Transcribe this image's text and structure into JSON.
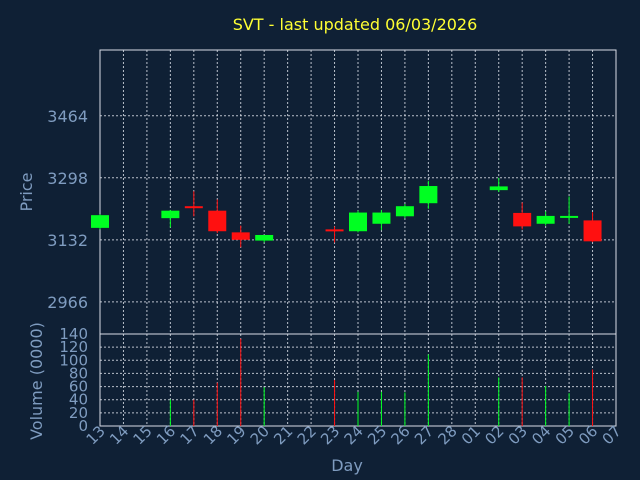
{
  "chart_data": {
    "type": "candlestick",
    "title": "SVT - last updated 06/03/2026",
    "xlabel": "Day",
    "price_ylabel": "Price",
    "volume_ylabel": "Volume (0000)",
    "price_ticks": [
      2966,
      3132,
      3298,
      3464
    ],
    "price_ylim": [
      2880,
      3640
    ],
    "volume_ticks": [
      0,
      20,
      40,
      60,
      80,
      100,
      120,
      140
    ],
    "volume_ylim": [
      0,
      140
    ],
    "x_labels": [
      "13",
      "14",
      "15",
      "16",
      "17",
      "18",
      "19",
      "20",
      "21",
      "22",
      "23",
      "24",
      "25",
      "26",
      "27",
      "28",
      "01",
      "02",
      "03",
      "04",
      "05",
      "06",
      "07"
    ],
    "up_color": "#00ff22",
    "down_color": "#ff1010",
    "candles": [
      {
        "x": 0,
        "open": 3164,
        "high": 3200,
        "low": 3160,
        "close": 3198,
        "volume": 0
      },
      {
        "x": 3,
        "open": 3190,
        "high": 3212,
        "low": 3165,
        "close": 3210,
        "volume": 40
      },
      {
        "x": 4,
        "open": 3222,
        "high": 3262,
        "low": 3195,
        "close": 3220,
        "volume": 40
      },
      {
        "x": 5,
        "open": 3210,
        "high": 3240,
        "low": 3150,
        "close": 3155,
        "volume": 66
      },
      {
        "x": 6,
        "open": 3152,
        "high": 3170,
        "low": 3112,
        "close": 3132,
        "volume": 133
      },
      {
        "x": 7,
        "open": 3130,
        "high": 3145,
        "low": 3125,
        "close": 3145,
        "volume": 59
      },
      {
        "x": 10,
        "open": 3160,
        "high": 3168,
        "low": 3125,
        "close": 3155,
        "volume": 70
      },
      {
        "x": 11,
        "open": 3155,
        "high": 3210,
        "low": 3152,
        "close": 3205,
        "volume": 52
      },
      {
        "x": 12,
        "open": 3175,
        "high": 3212,
        "low": 3158,
        "close": 3205,
        "volume": 52
      },
      {
        "x": 13,
        "open": 3195,
        "high": 3228,
        "low": 3190,
        "close": 3222,
        "volume": 51
      },
      {
        "x": 14,
        "open": 3230,
        "high": 3290,
        "low": 3215,
        "close": 3276,
        "volume": 109
      },
      {
        "x": 17,
        "open": 3265,
        "high": 3298,
        "low": 3260,
        "close": 3275,
        "volume": 74
      },
      {
        "x": 18,
        "open": 3204,
        "high": 3232,
        "low": 3160,
        "close": 3168,
        "volume": 74
      },
      {
        "x": 19,
        "open": 3175,
        "high": 3208,
        "low": 3170,
        "close": 3196,
        "volume": 61
      },
      {
        "x": 20,
        "open": 3192,
        "high": 3248,
        "low": 3175,
        "close": 3196,
        "volume": 50
      },
      {
        "x": 21,
        "open": 3184,
        "high": 3206,
        "low": 3126,
        "close": 3128,
        "volume": 86
      }
    ]
  }
}
